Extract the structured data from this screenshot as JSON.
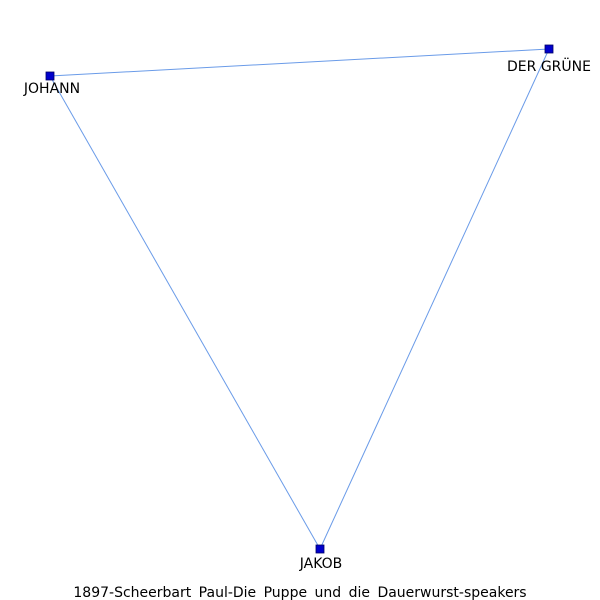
{
  "caption": "1897-Scheerbart Paul-Die Puppe und die Dauerwurst-speakers",
  "colors": {
    "edge": "#6a9be8",
    "node_fill": "#0000cc",
    "node_stroke": "#000066"
  },
  "nodes": [
    {
      "id": "johann",
      "label": "JOHANN"
    },
    {
      "id": "der-grune",
      "label": "DER GRÜNE"
    },
    {
      "id": "jakob",
      "label": "JAKOB"
    }
  ],
  "edges": [
    {
      "source": "johann",
      "target": "der-grune"
    },
    {
      "source": "johann",
      "target": "jakob"
    },
    {
      "source": "der-grune",
      "target": "jakob"
    }
  ]
}
